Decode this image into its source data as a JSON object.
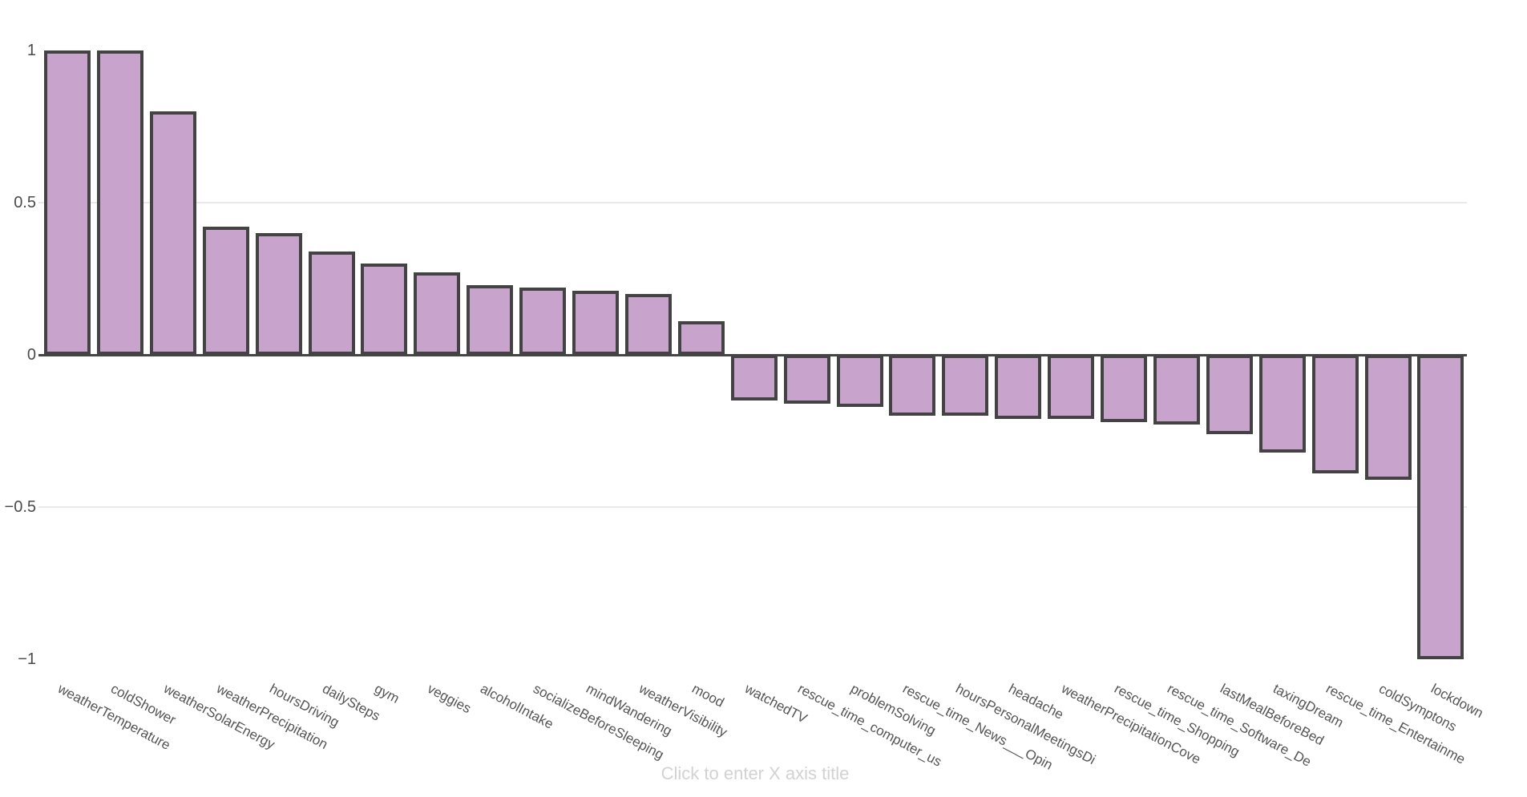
{
  "chart_data": {
    "type": "bar",
    "title": "",
    "categories": [
      "weatherTemperature",
      "coldShower",
      "weatherSolarEnergy",
      "weatherPrecipitation",
      "hoursDriving",
      "dailySteps",
      "gym",
      "veggies",
      "alcoholIntake",
      "socializeBeforeSleeping",
      "mindWandering",
      "weatherVisibility",
      "mood",
      "watchedTV",
      "rescue_time_computer_us",
      "problemSolving",
      "rescue_time_News___Opin",
      "hoursPersonalMeetingsDi",
      "headache",
      "weatherPrecipitationCove",
      "rescue_time_Shopping",
      "rescue_time_Software_De",
      "lastMealBeforeBed",
      "taxingDream",
      "rescue_time_Entertainme",
      "coldSymptons",
      "lockdown"
    ],
    "values": [
      1,
      1,
      0.8,
      0.42,
      0.4,
      0.34,
      0.3,
      0.27,
      0.23,
      0.22,
      0.21,
      0.2,
      0.11,
      -0.15,
      -0.16,
      -0.17,
      -0.2,
      -0.2,
      -0.21,
      -0.21,
      -0.22,
      -0.23,
      -0.26,
      -0.32,
      -0.39,
      -0.41,
      -1
    ],
    "xlabel": "",
    "ylabel": "",
    "ylim": [
      -1,
      1
    ],
    "yticks": [
      1,
      0.5,
      0,
      -0.5,
      -1
    ],
    "ytick_labels": [
      "1",
      "0.5",
      "0",
      "−0.5",
      "−1"
    ],
    "gridlines_at": [
      0.5,
      -0.5
    ],
    "legend_position": "none",
    "xaxis_title_placeholder": "Click to enter X axis title",
    "colors": {
      "bar_fill": "#c8a4cc",
      "bar_border": "#434343",
      "zero_line": "#444444",
      "gridline": "#e9e9e9",
      "ytick_text": "#4a4a4a",
      "xlabel_text": "#555555",
      "placeholder_text": "#d2d2d2",
      "background": "#ffffff"
    }
  }
}
